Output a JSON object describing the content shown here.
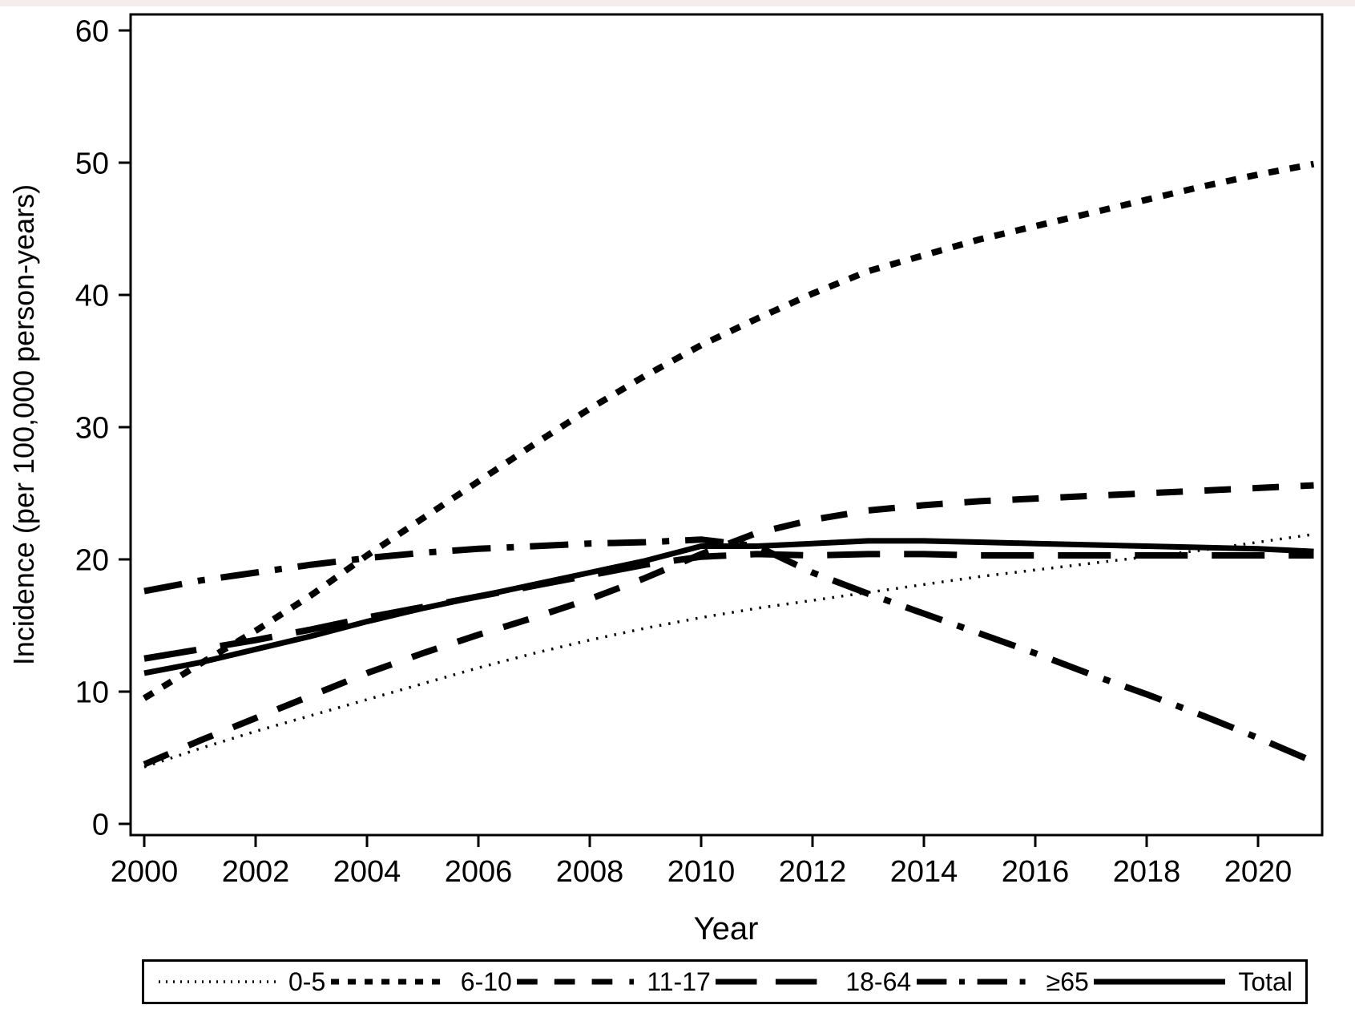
{
  "figure": {
    "x_axis_title": "Year",
    "y_axis_title": "Incidence (per 100,000 person-years)"
  },
  "colors": {
    "line": "#000000",
    "background": "#ffffff",
    "top_strip": "#f5edeb",
    "frame": "#000000"
  },
  "chart_data": {
    "type": "line",
    "title": "",
    "xlabel": "Year",
    "ylabel": "Incidence (per 100,000 person-years)",
    "xlim": [
      2000,
      2021
    ],
    "ylim": [
      0,
      60
    ],
    "grid": false,
    "legend_position": "bottom",
    "x": [
      2000,
      2001,
      2002,
      2003,
      2004,
      2005,
      2006,
      2007,
      2008,
      2009,
      2010,
      2011,
      2012,
      2013,
      2014,
      2015,
      2016,
      2017,
      2018,
      2019,
      2020,
      2021
    ],
    "x_tick_labels": [
      "2000",
      "2002",
      "2004",
      "2006",
      "2008",
      "2010",
      "2012",
      "2014",
      "2016",
      "2018",
      "2020"
    ],
    "x_tick_years": [
      2000,
      2002,
      2004,
      2006,
      2008,
      2010,
      2012,
      2014,
      2016,
      2018,
      2020
    ],
    "y_ticks": [
      0,
      10,
      20,
      30,
      40,
      50,
      60
    ],
    "series": [
      {
        "name": "0-5",
        "style": "fine-dotted",
        "values": [
          4.3,
          5.7,
          7.0,
          8.2,
          9.4,
          10.6,
          11.8,
          12.9,
          13.9,
          14.8,
          15.6,
          16.3,
          16.9,
          17.5,
          18.1,
          18.7,
          19.2,
          19.7,
          20.2,
          20.7,
          21.3,
          21.9
        ]
      },
      {
        "name": "6-10",
        "style": "short-dash",
        "values": [
          9.5,
          12.1,
          14.6,
          17.3,
          20.3,
          23.1,
          25.9,
          28.7,
          31.4,
          33.9,
          36.2,
          38.2,
          40.1,
          41.8,
          43.0,
          44.2,
          45.2,
          46.2,
          47.2,
          48.2,
          49.1,
          49.9
        ]
      },
      {
        "name": "11-17",
        "style": "medium-dash",
        "values": [
          4.5,
          6.3,
          8.0,
          9.7,
          11.4,
          12.9,
          14.3,
          15.6,
          17.0,
          18.6,
          20.4,
          22.0,
          23.0,
          23.7,
          24.1,
          24.4,
          24.6,
          24.8,
          25.0,
          25.2,
          25.4,
          25.6
        ]
      },
      {
        "name": "18-64",
        "style": "long-dash",
        "values": [
          12.5,
          13.2,
          13.9,
          14.7,
          15.6,
          16.4,
          17.2,
          18.0,
          18.8,
          19.6,
          20.2,
          20.4,
          20.3,
          20.4,
          20.4,
          20.3,
          20.3,
          20.3,
          20.3,
          20.3,
          20.3,
          20.3
        ]
      },
      {
        "name": "≥65",
        "style": "dash-dot",
        "values": [
          17.6,
          18.4,
          19.0,
          19.6,
          20.1,
          20.5,
          20.8,
          21.0,
          21.2,
          21.3,
          21.5,
          21.0,
          19.0,
          17.4,
          15.9,
          14.4,
          12.9,
          11.3,
          9.8,
          8.2,
          6.5,
          4.7
        ]
      },
      {
        "name": "Total",
        "style": "solid",
        "values": [
          11.4,
          12.2,
          13.2,
          14.2,
          15.3,
          16.3,
          17.2,
          18.1,
          19.0,
          19.9,
          21.0,
          21.0,
          21.2,
          21.4,
          21.4,
          21.3,
          21.2,
          21.1,
          21.0,
          20.9,
          20.8,
          20.6
        ]
      }
    ]
  }
}
